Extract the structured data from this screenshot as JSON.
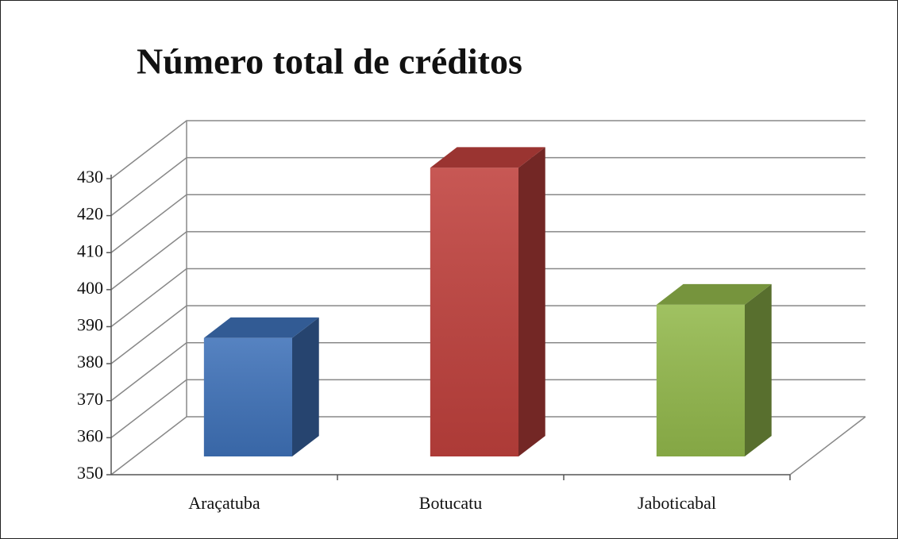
{
  "chart_data": {
    "type": "bar3d",
    "title": "Número total de créditos",
    "categories": [
      "Araçatuba",
      "Botucatu",
      "Jaboticabal"
    ],
    "values": [
      382,
      428,
      391
    ],
    "colors": [
      "#3f72b9",
      "#c0413d",
      "#93b94c"
    ],
    "ylim": [
      350,
      430
    ],
    "yticks": [
      350,
      360,
      370,
      380,
      390,
      400,
      410,
      420,
      430
    ],
    "grid": true
  }
}
